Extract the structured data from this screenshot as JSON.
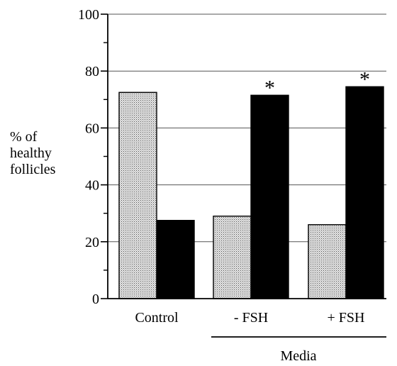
{
  "chart_data": {
    "type": "bar",
    "categories": [
      "Control",
      "- FSH",
      "+ FSH"
    ],
    "series": [
      {
        "values": [
          72.5,
          29,
          26
        ],
        "color": "#d8d8d8",
        "pattern": "stippled"
      },
      {
        "values": [
          27.5,
          71.5,
          74.5
        ],
        "color": "#000000"
      }
    ],
    "ylabel_lines": [
      "% of",
      "healthy",
      "follicles"
    ],
    "xgroup_label": "Media",
    "ylim": [
      0,
      100
    ],
    "yticks": [
      0,
      20,
      40,
      60,
      80,
      100
    ],
    "grid": "horizontal",
    "significance_marker": "*",
    "significant": [
      [
        false,
        false
      ],
      [
        false,
        true
      ],
      [
        false,
        true
      ]
    ]
  }
}
